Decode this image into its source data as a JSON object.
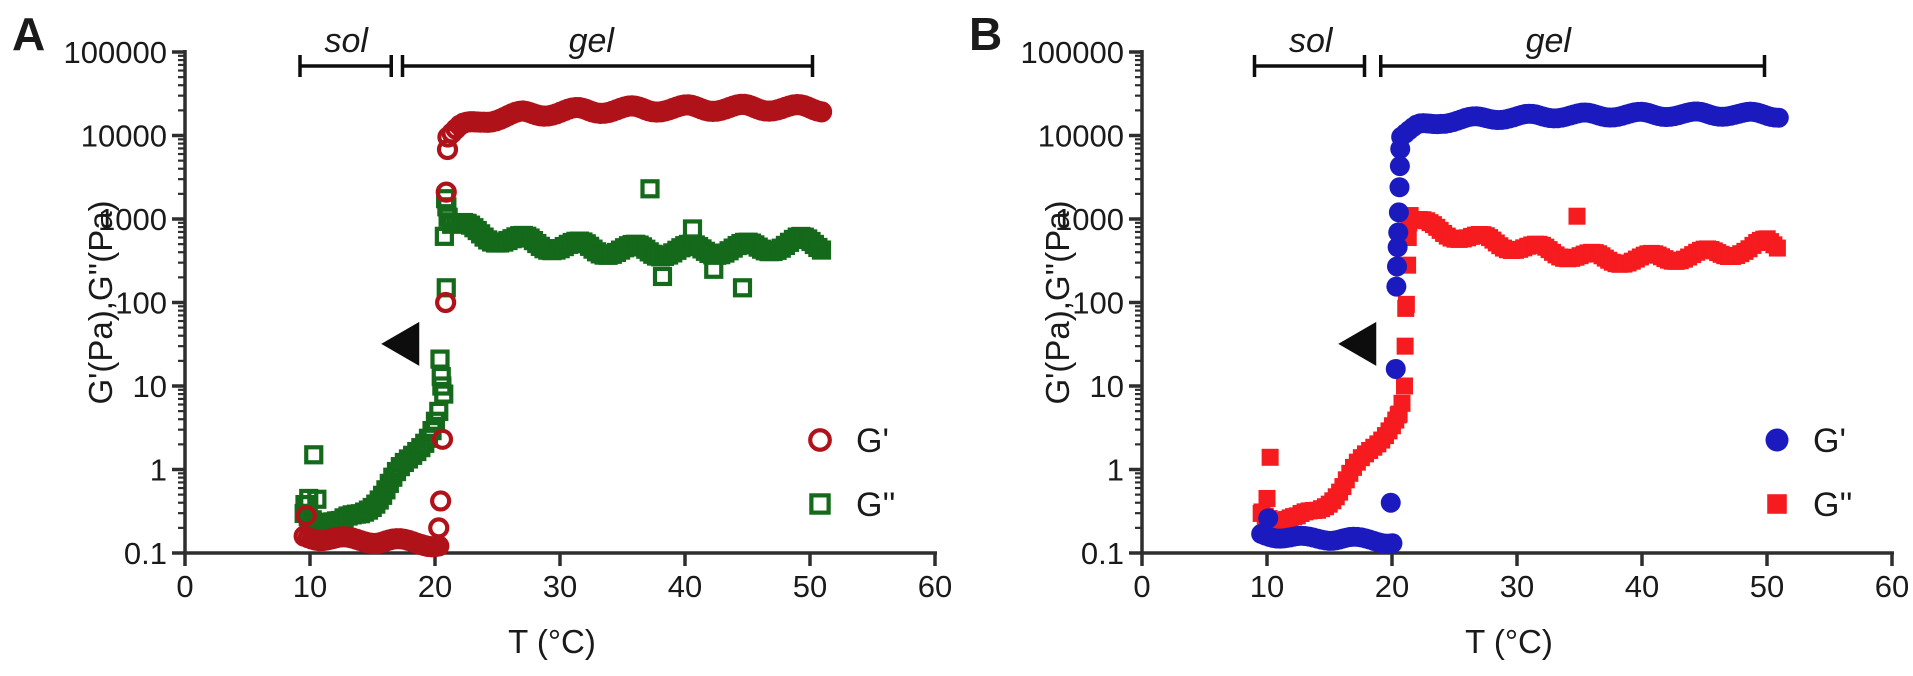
{
  "figure": {
    "background": "#ffffff",
    "axis_color": "#2e2e2e",
    "text_color": "#1a1a1a",
    "annotation_color": "#0d0d0d"
  },
  "chart_data": [
    {
      "panel_label": "A",
      "type": "scatter",
      "x_axis": {
        "title": "T (°C)",
        "lim": [
          0,
          60
        ],
        "ticks": [
          0,
          10,
          20,
          30,
          40,
          50,
          60
        ],
        "tick_labels": [
          "0",
          "10",
          "20",
          "30",
          "40",
          "50",
          "60"
        ]
      },
      "y_axis": {
        "title": "G'(Pa),G''(Pa)",
        "scale": "log",
        "lim": [
          0.1,
          100000
        ],
        "tick_exponents": [
          5,
          4,
          3,
          2,
          1,
          0,
          -1
        ],
        "tick_labels": [
          "100000",
          "10000",
          "1000",
          "100",
          "10",
          "1",
          "0.1"
        ]
      },
      "regions": [
        {
          "label": "sol",
          "t_start": 9.2,
          "t_end": 16.5,
          "label_t": 12.9
        },
        {
          "label": "gel",
          "t_start": 17.4,
          "t_end": 50.2,
          "label_t": 32.5
        }
      ],
      "arrow": {
        "tip_t": 15.7,
        "g_value": 32
      },
      "series": [
        {
          "name": "G'",
          "marker": "open-circle",
          "color": "#B01219",
          "trend": [
            {
              "step": 0.3,
              "jitter": 0.035,
              "anchors": [
                [
                  9.5,
                  0.16
                ],
                [
                  12,
                  0.145
                ],
                [
                  16,
                  0.14
                ],
                [
                  19,
                  0.132
                ],
                [
                  20.4,
                  0.125
                ]
              ]
            },
            {
              "step": 0.3,
              "jitter": 0.04,
              "anchors": [
                [
                  21.0,
                  9800
                ],
                [
                  22,
                  12500
                ],
                [
                  24,
                  15500
                ],
                [
                  27,
                  18000
                ],
                [
                  32,
                  20000
                ],
                [
                  38,
                  21000
                ],
                [
                  44,
                  21500
                ],
                [
                  48,
                  21500
                ],
                [
                  51,
                  21000
                ]
              ]
            }
          ],
          "points": [
            [
              9.7,
              0.28
            ],
            [
              20.3,
              0.2
            ],
            [
              20.45,
              0.42
            ],
            [
              20.6,
              2.3
            ],
            [
              20.85,
              100
            ],
            [
              20.9,
              2100
            ],
            [
              21.0,
              6800
            ]
          ]
        },
        {
          "name": "G''",
          "marker": "open-square",
          "color": "#15691B",
          "trend": [
            {
              "step": 0.3,
              "jitter": 0.05,
              "anchors": [
                [
                  9.5,
                  0.3
                ],
                [
                  11,
                  0.24
                ],
                [
                  12.5,
                  0.22
                ],
                [
                  14,
                  0.3
                ],
                [
                  16,
                  0.55
                ],
                [
                  18,
                  1.3
                ],
                [
                  19.5,
                  2.8
                ],
                [
                  20.3,
                  5.2
                ]
              ]
            },
            {
              "step": 0.3,
              "jitter": 0.07,
              "anchors": [
                [
                  21.3,
                  900
                ],
                [
                  23,
                  700
                ],
                [
                  26,
                  560
                ],
                [
                  30,
                  480
                ],
                [
                  34,
                  430
                ],
                [
                  38,
                  415
                ],
                [
                  42,
                  430
                ],
                [
                  46,
                  455
                ],
                [
                  49,
                  530
                ],
                [
                  51,
                  480
                ]
              ]
            }
          ],
          "points": [
            [
              9.6,
              0.38
            ],
            [
              9.9,
              0.45
            ],
            [
              10.3,
              1.5
            ],
            [
              10.55,
              0.44
            ],
            [
              20.4,
              21
            ],
            [
              20.5,
              13
            ],
            [
              20.55,
              10
            ],
            [
              20.7,
              8
            ],
            [
              20.75,
              620
            ],
            [
              20.85,
              1750
            ],
            [
              20.95,
              1400
            ],
            [
              21.05,
              1050
            ],
            [
              20.9,
              150
            ],
            [
              37.2,
              2300
            ],
            [
              38.2,
              205
            ],
            [
              40.6,
              760
            ],
            [
              42.3,
              250
            ],
            [
              44.6,
              150
            ]
          ]
        }
      ],
      "legend": {
        "items": [
          {
            "label": "G'",
            "marker": "open-circle",
            "color": "#B01219"
          },
          {
            "label": "G''",
            "marker": "open-square",
            "color": "#15691B"
          }
        ]
      }
    },
    {
      "panel_label": "B",
      "type": "scatter",
      "x_axis": {
        "title": "T (°C)",
        "lim": [
          0,
          60
        ],
        "ticks": [
          0,
          10,
          20,
          30,
          40,
          50,
          60
        ],
        "tick_labels": [
          "0",
          "10",
          "20",
          "30",
          "40",
          "50",
          "60"
        ]
      },
      "y_axis": {
        "title": "G'(Pa),G''(Pa)",
        "scale": "log",
        "lim": [
          0.1,
          100000
        ],
        "tick_exponents": [
          5,
          4,
          3,
          2,
          1,
          0,
          -1
        ],
        "tick_labels": [
          "100000",
          "10000",
          "1000",
          "100",
          "10",
          "1",
          "0.1"
        ]
      },
      "regions": [
        {
          "label": "sol",
          "t_start": 9.0,
          "t_end": 17.8,
          "label_t": 13.5
        },
        {
          "label": "gel",
          "t_start": 19.1,
          "t_end": 49.8,
          "label_t": 32.5
        }
      ],
      "arrow": {
        "tip_t": 15.7,
        "g_value": 32
      },
      "series": [
        {
          "name": "G'",
          "marker": "filled-circle",
          "color": "#1A1ABF",
          "trend": [
            {
              "step": 0.3,
              "jitter": 0.03,
              "anchors": [
                [
                  9.5,
                  0.17
                ],
                [
                  12,
                  0.15
                ],
                [
                  16,
                  0.15
                ],
                [
                  19,
                  0.14
                ],
                [
                  19.9,
                  0.138
                ]
              ]
            },
            {
              "step": 0.3,
              "jitter": 0.032,
              "anchors": [
                [
                  20.7,
                  9800
                ],
                [
                  22,
                  12800
                ],
                [
                  24,
                  14800
                ],
                [
                  28,
                  16400
                ],
                [
                  33,
                  17300
                ],
                [
                  40,
                  17900
                ],
                [
                  47,
                  18100
                ],
                [
                  51,
                  17600
                ]
              ]
            }
          ],
          "points": [
            [
              10.1,
              0.26
            ],
            [
              19.9,
              0.4
            ],
            [
              20.3,
              16
            ],
            [
              20.35,
              155
            ],
            [
              20.4,
              270
            ],
            [
              20.45,
              460
            ],
            [
              20.5,
              690
            ],
            [
              20.55,
              1200
            ],
            [
              20.6,
              2400
            ],
            [
              20.63,
              4300
            ],
            [
              20.66,
              6900
            ]
          ]
        },
        {
          "name": "G''",
          "marker": "filled-square",
          "color": "#F51B1E",
          "trend": [
            {
              "step": 0.3,
              "jitter": 0.05,
              "anchors": [
                [
                  9.5,
                  0.3
                ],
                [
                  11,
                  0.26
                ],
                [
                  12.5,
                  0.25
                ],
                [
                  14,
                  0.33
                ],
                [
                  16,
                  0.6
                ],
                [
                  18,
                  1.5
                ],
                [
                  19.5,
                  3
                ],
                [
                  20.6,
                  4.6
                ]
              ]
            },
            {
              "step": 0.3,
              "jitter": 0.06,
              "anchors": [
                [
                  21.5,
                  1000
                ],
                [
                  23,
                  790
                ],
                [
                  26,
                  610
                ],
                [
                  30,
                  470
                ],
                [
                  34,
                  385
                ],
                [
                  37,
                  330
                ],
                [
                  40,
                  330
                ],
                [
                  43,
                  360
                ],
                [
                  46,
                  390
                ],
                [
                  48.5,
                  430
                ],
                [
                  50,
                  520
                ],
                [
                  51,
                  470
                ]
              ]
            }
          ],
          "points": [
            [
              9.6,
              0.31
            ],
            [
              10.0,
              0.45
            ],
            [
              10.25,
              1.4
            ],
            [
              20.5,
              4.5
            ],
            [
              20.8,
              6.2
            ],
            [
              21.0,
              10
            ],
            [
              21.05,
              30
            ],
            [
              21.1,
              85
            ],
            [
              21.15,
              95
            ],
            [
              21.25,
              280
            ],
            [
              21.3,
              600
            ],
            [
              21.35,
              900
            ],
            [
              21.45,
              1100
            ],
            [
              34.8,
              1080
            ]
          ]
        }
      ],
      "legend": {
        "items": [
          {
            "label": "G'",
            "marker": "filled-circle",
            "color": "#1A1ABF"
          },
          {
            "label": "G''",
            "marker": "filled-square",
            "color": "#F51B1E"
          }
        ]
      }
    }
  ]
}
